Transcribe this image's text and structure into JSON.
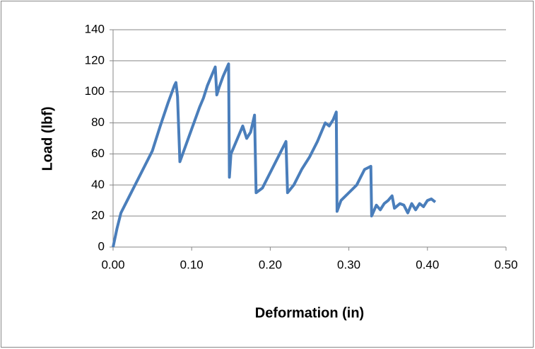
{
  "chart_data": {
    "type": "line",
    "x_label": "Deformation (in)",
    "y_label": "Load (lbf)",
    "x": [
      0,
      0.005,
      0.01,
      0.02,
      0.03,
      0.04,
      0.05,
      0.06,
      0.07,
      0.078,
      0.08,
      0.082,
      0.085,
      0.09,
      0.1,
      0.11,
      0.115,
      0.12,
      0.13,
      0.132,
      0.135,
      0.14,
      0.147,
      0.148,
      0.15,
      0.16,
      0.165,
      0.17,
      0.175,
      0.18,
      0.182,
      0.19,
      0.2,
      0.21,
      0.22,
      0.222,
      0.23,
      0.24,
      0.25,
      0.26,
      0.27,
      0.275,
      0.28,
      0.284,
      0.285,
      0.29,
      0.3,
      0.31,
      0.32,
      0.328,
      0.329,
      0.335,
      0.34,
      0.345,
      0.35,
      0.355,
      0.358,
      0.365,
      0.37,
      0.375,
      0.38,
      0.385,
      0.39,
      0.395,
      0.4,
      0.405,
      0.41
    ],
    "values": [
      0,
      12,
      22,
      32,
      42,
      52,
      62,
      78,
      93,
      104,
      106,
      97,
      55,
      62,
      76,
      90,
      96,
      104,
      116,
      98,
      103,
      110,
      118,
      45,
      60,
      72,
      78,
      70,
      74,
      85,
      35,
      38,
      48,
      58,
      68,
      35,
      40,
      50,
      58,
      68,
      80,
      78,
      82,
      87,
      23,
      30,
      35,
      40,
      50,
      52,
      20,
      27,
      24,
      28,
      30,
      33,
      25,
      28,
      27,
      22,
      28,
      24,
      28,
      26,
      30,
      31,
      29
    ],
    "color": "#4a7ebb",
    "xlim": [
      0,
      0.5
    ],
    "xticks": [
      {
        "value": 0,
        "label": "0.00"
      },
      {
        "value": 0.1,
        "label": "0.10"
      },
      {
        "value": 0.2,
        "label": "0.20"
      },
      {
        "value": 0.3,
        "label": "0.30"
      },
      {
        "value": 0.4,
        "label": "0.40"
      },
      {
        "value": 0.5,
        "label": "0.50"
      }
    ],
    "ylim": [
      0,
      140
    ],
    "yticks": [
      0,
      20,
      40,
      60,
      80,
      100,
      120,
      140
    ],
    "grid": true
  }
}
